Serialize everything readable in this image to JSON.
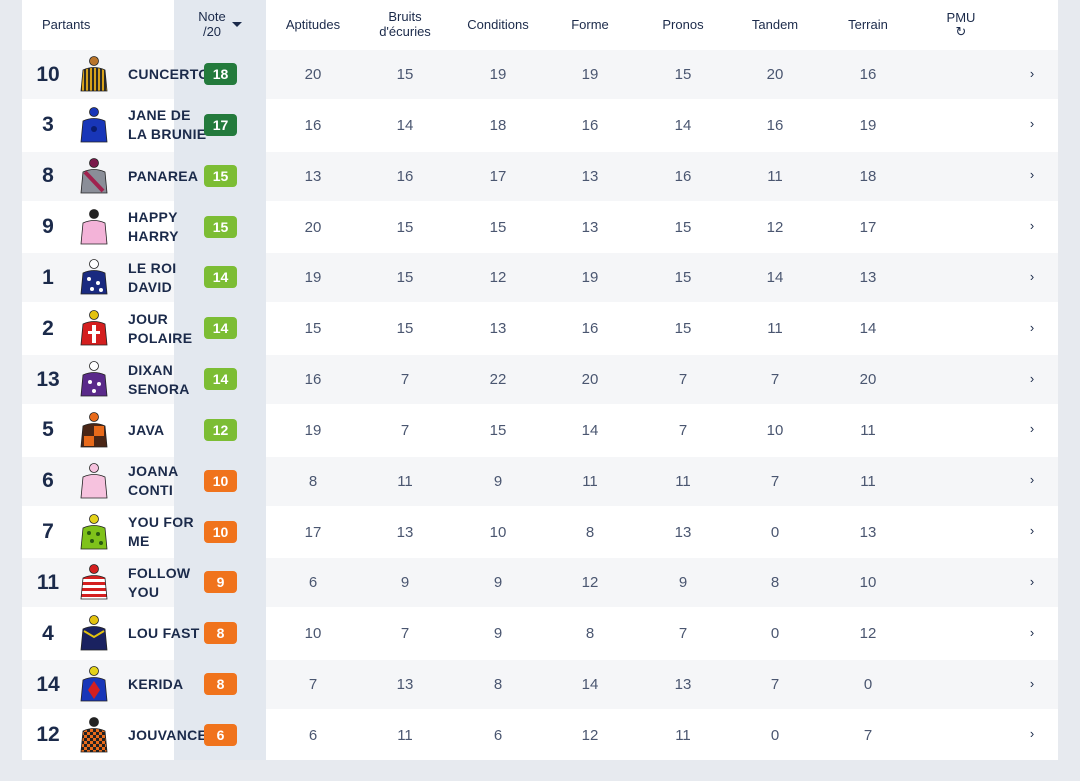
{
  "header": {
    "partants": "Partants",
    "note_line1": "Note",
    "note_line2": "/20",
    "aptitudes": "Aptitudes",
    "bruits_line1": "Bruits",
    "bruits_line2": "d'écuries",
    "conditions": "Conditions",
    "forme": "Forme",
    "pronos": "Pronos",
    "tandem": "Tandem",
    "terrain": "Terrain",
    "pmu": "PMU",
    "refresh_icon": "↻"
  },
  "colors": {
    "note_18_17": "#237a3c",
    "note_15_12": "#7cbd34",
    "note_low": "#f0731c"
  },
  "rows": [
    {
      "num": "10",
      "name": "CUNCERTO",
      "note": "18",
      "aptitudes": "20",
      "bruits": "15",
      "conditions": "19",
      "forme": "19",
      "pronos": "15",
      "tandem": "20",
      "terrain": "16",
      "chevron": "›",
      "silk": "gold-stripes"
    },
    {
      "num": "3",
      "name": "JANE DE LA BRUNIE",
      "note": "17",
      "aptitudes": "16",
      "bruits": "14",
      "conditions": "18",
      "forme": "16",
      "pronos": "14",
      "tandem": "16",
      "terrain": "19",
      "chevron": "›",
      "silk": "blue"
    },
    {
      "num": "8",
      "name": "PANAREA",
      "note": "15",
      "aptitudes": "13",
      "bruits": "16",
      "conditions": "17",
      "forme": "13",
      "pronos": "16",
      "tandem": "11",
      "terrain": "18",
      "chevron": "›",
      "silk": "grey-sash"
    },
    {
      "num": "9",
      "name": "HAPPY HARRY",
      "note": "15",
      "aptitudes": "20",
      "bruits": "15",
      "conditions": "15",
      "forme": "13",
      "pronos": "15",
      "tandem": "12",
      "terrain": "17",
      "chevron": "›",
      "silk": "pink"
    },
    {
      "num": "1",
      "name": "LE ROI DAVID",
      "note": "14",
      "aptitudes": "19",
      "bruits": "15",
      "conditions": "12",
      "forme": "19",
      "pronos": "15",
      "tandem": "14",
      "terrain": "13",
      "chevron": "›",
      "silk": "navy-stars"
    },
    {
      "num": "2",
      "name": "JOUR POLAIRE",
      "note": "14",
      "aptitudes": "15",
      "bruits": "15",
      "conditions": "13",
      "forme": "16",
      "pronos": "15",
      "tandem": "11",
      "terrain": "14",
      "chevron": "›",
      "silk": "red-cross"
    },
    {
      "num": "13",
      "name": "DIXAN SENORA",
      "note": "14",
      "aptitudes": "16",
      "bruits": "7",
      "conditions": "22",
      "forme": "20",
      "pronos": "7",
      "tandem": "7",
      "terrain": "20",
      "chevron": "›",
      "silk": "purple-stars"
    },
    {
      "num": "5",
      "name": "JAVA",
      "note": "12",
      "aptitudes": "19",
      "bruits": "7",
      "conditions": "15",
      "forme": "14",
      "pronos": "7",
      "tandem": "10",
      "terrain": "11",
      "chevron": "›",
      "silk": "brown-orange"
    },
    {
      "num": "6",
      "name": "JOANA CONTI",
      "note": "10",
      "aptitudes": "8",
      "bruits": "11",
      "conditions": "9",
      "forme": "11",
      "pronos": "11",
      "tandem": "7",
      "terrain": "11",
      "chevron": "›",
      "silk": "light-pink"
    },
    {
      "num": "7",
      "name": "YOU FOR ME",
      "note": "10",
      "aptitudes": "17",
      "bruits": "13",
      "conditions": "10",
      "forme": "8",
      "pronos": "13",
      "tandem": "0",
      "terrain": "13",
      "chevron": "›",
      "silk": "green-dots"
    },
    {
      "num": "11",
      "name": "FOLLOW YOU",
      "note": "9",
      "aptitudes": "6",
      "bruits": "9",
      "conditions": "9",
      "forme": "12",
      "pronos": "9",
      "tandem": "8",
      "terrain": "10",
      "chevron": "›",
      "silk": "red-hoops"
    },
    {
      "num": "4",
      "name": "LOU FAST",
      "note": "8",
      "aptitudes": "10",
      "bruits": "7",
      "conditions": "9",
      "forme": "8",
      "pronos": "7",
      "tandem": "0",
      "terrain": "12",
      "chevron": "›",
      "silk": "navy-yellow"
    },
    {
      "num": "14",
      "name": "KERIDA",
      "note": "8",
      "aptitudes": "7",
      "bruits": "13",
      "conditions": "8",
      "forme": "14",
      "pronos": "13",
      "tandem": "7",
      "terrain": "0",
      "chevron": "›",
      "silk": "blue-red-yellow"
    },
    {
      "num": "12",
      "name": "JOUVANCE",
      "note": "6",
      "aptitudes": "6",
      "bruits": "11",
      "conditions": "6",
      "forme": "12",
      "pronos": "11",
      "tandem": "0",
      "terrain": "7",
      "chevron": "›",
      "silk": "black-orange-check"
    }
  ]
}
